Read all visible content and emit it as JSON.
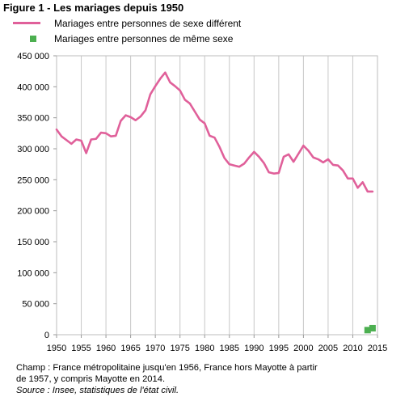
{
  "chart_data": {
    "type": "line",
    "title": "Figure 1 - Les mariages depuis 1950",
    "xlabel": "",
    "ylabel": "",
    "xlim": [
      1950,
      2015
    ],
    "ylim": [
      0,
      450000
    ],
    "x_ticks": [
      1950,
      1955,
      1960,
      1965,
      1970,
      1975,
      1980,
      1985,
      1990,
      1995,
      2000,
      2005,
      2010,
      2015
    ],
    "y_ticks": [
      0,
      50000,
      100000,
      150000,
      200000,
      250000,
      300000,
      350000,
      400000,
      450000
    ],
    "y_tick_labels": [
      "0",
      "50 000",
      "100 000",
      "150 000",
      "200 000",
      "250 000",
      "300 000",
      "350 000",
      "400 000",
      "450 000"
    ],
    "grid": "vertical",
    "legend_position": "top-left",
    "series": [
      {
        "name": "Mariages entre personnes de sexe différent",
        "color": "#e0609a",
        "marker": "line",
        "x": [
          1950,
          1951,
          1952,
          1953,
          1954,
          1955,
          1956,
          1957,
          1958,
          1959,
          1960,
          1961,
          1962,
          1963,
          1964,
          1965,
          1966,
          1967,
          1968,
          1969,
          1970,
          1971,
          1972,
          1973,
          1974,
          1975,
          1976,
          1977,
          1978,
          1979,
          1980,
          1981,
          1982,
          1983,
          1984,
          1985,
          1986,
          1987,
          1988,
          1989,
          1990,
          1991,
          1992,
          1993,
          1994,
          1995,
          1996,
          1997,
          1998,
          1999,
          2000,
          2001,
          2002,
          2003,
          2004,
          2005,
          2006,
          2007,
          2008,
          2009,
          2010,
          2011,
          2012,
          2013,
          2014
        ],
        "values": [
          331000,
          320000,
          314000,
          308000,
          315000,
          313000,
          293000,
          315000,
          316000,
          326000,
          325000,
          320000,
          321000,
          345000,
          354000,
          351000,
          346000,
          352000,
          362000,
          388000,
          401000,
          413000,
          423000,
          407000,
          401000,
          394000,
          379000,
          373000,
          360000,
          347000,
          341000,
          321000,
          318000,
          303000,
          285000,
          275000,
          273000,
          271000,
          276000,
          286000,
          295000,
          287000,
          277000,
          262000,
          260000,
          261000,
          287000,
          291000,
          279000,
          292000,
          305000,
          297000,
          286000,
          283000,
          278000,
          283000,
          274000,
          273000,
          265000,
          252000,
          252000,
          237000,
          246000,
          231000,
          231000
        ]
      },
      {
        "name": "Mariages entre personnes de même sexe",
        "color": "#4caf50",
        "marker": "square",
        "x": [
          2013,
          2014
        ],
        "values": [
          7400,
          10500
        ]
      }
    ]
  },
  "notes": {
    "line1": "Champ : France métropolitaine jusqu'en 1956, France hors Mayotte à partir",
    "line2": "de 1957, y compris Mayotte en 2014.",
    "source": "Source : Insee, statistiques de l'état civil."
  }
}
